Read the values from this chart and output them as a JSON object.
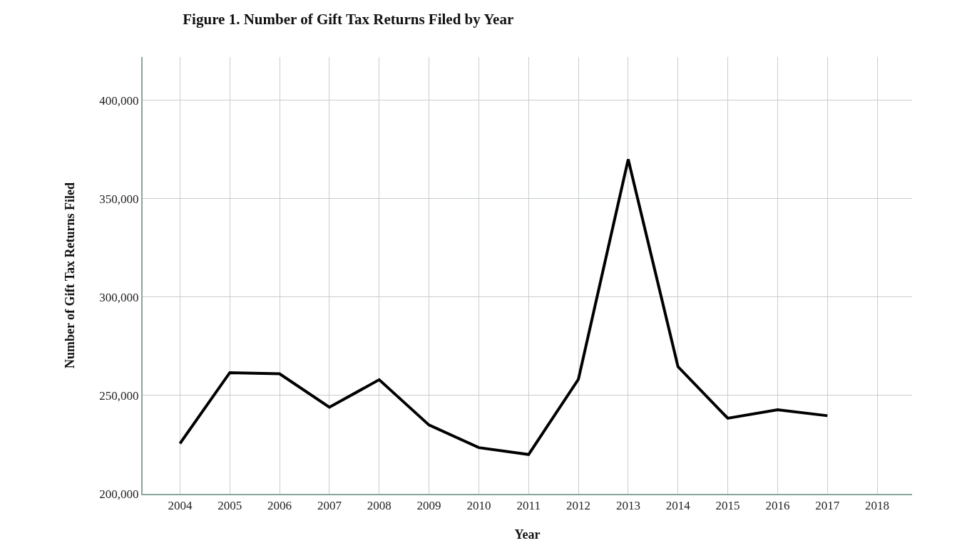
{
  "chart_data": {
    "type": "line",
    "title": "Figure 1. Number of Gift Tax Returns Filed by Year",
    "xlabel": "Year",
    "ylabel": "Number of Gift Tax Returns Filed",
    "categories": [
      "2004",
      "2005",
      "2006",
      "2007",
      "2008",
      "2009",
      "2010",
      "2011",
      "2012",
      "2013",
      "2014",
      "2015",
      "2016",
      "2017",
      "2018"
    ],
    "series": [
      {
        "color": "#000000",
        "values": [
          225600,
          261600,
          261000,
          244000,
          258000,
          235000,
          223500,
          220000,
          258200,
          370000,
          264600,
          238400,
          242700,
          239700,
          null
        ]
      }
    ],
    "ylim": [
      200000,
      422000
    ],
    "yticks": [
      {
        "value": 200000,
        "label": "200,000"
      },
      {
        "value": 250000,
        "label": "250,000"
      },
      {
        "value": 300000,
        "label": "300,000"
      },
      {
        "value": 350000,
        "label": "350,000"
      },
      {
        "value": 400000,
        "label": "400,000"
      }
    ],
    "grid": true,
    "marker": "none",
    "line_style": "solid"
  }
}
